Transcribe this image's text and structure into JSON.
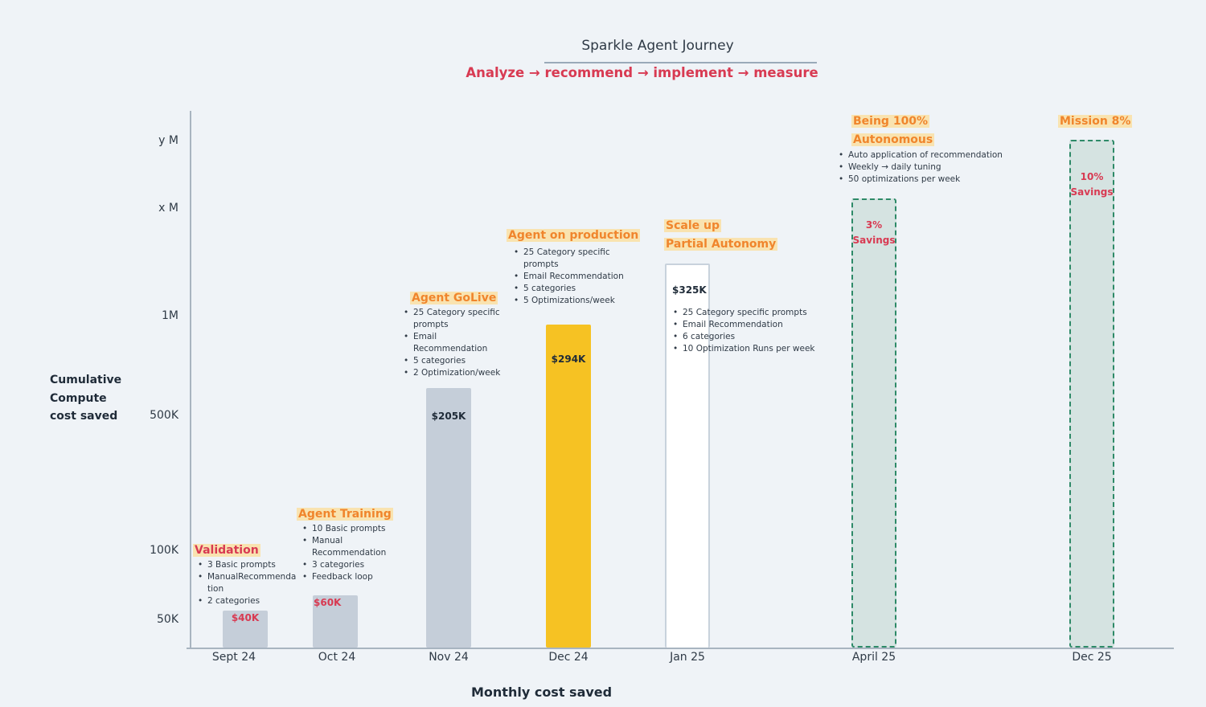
{
  "header": {
    "title": "Sparkle Agent Journey",
    "subtitle": "Analyze → recommend → implement → measure"
  },
  "colors": {
    "completed_bar": "#c5ced9",
    "current_bar": "#f6c223",
    "next_bar": "#ffffff",
    "target_bar_fill": "#d5e3e1",
    "target_bar_border": "#2e8a68",
    "title_orange": "#f0852c",
    "title_red": "#d83a52",
    "highlight": "#f9e3b0"
  },
  "chart_data": {
    "type": "bar",
    "title": "Sparkle Agent Journey",
    "subtitle": "Analyze → recommend → implement → measure",
    "xlabel": "Monthly cost saved",
    "ylabel": "Cumulative Compute cost saved",
    "y_tick_labels": [
      "50K",
      "100K",
      "500K",
      "1M",
      "x M",
      "y M"
    ],
    "grid": false,
    "categories": [
      "Sept 24",
      "Oct 24",
      "Nov 24",
      "Dec 24",
      "Jan 25",
      "April 25",
      "Dec 25"
    ],
    "bars": [
      {
        "category": "Sept 24",
        "value_label": "$40K",
        "value": 40000,
        "style": "completed",
        "phase_title": [
          "Validation"
        ],
        "phase_title_color": "red",
        "bullets": [
          "3 Basic prompts",
          "ManualRecommenda tion",
          "2 categories"
        ]
      },
      {
        "category": "Oct 24",
        "value_label": "$60K",
        "value": 60000,
        "style": "completed",
        "phase_title": [
          "Agent Training"
        ],
        "phase_title_color": "orange",
        "bullets": [
          "10 Basic prompts",
          "Manual Recommendation",
          "3 categories",
          "Feedback loop"
        ]
      },
      {
        "category": "Nov 24",
        "value_label": "$205K",
        "value": 205000,
        "style": "completed",
        "phase_title": [
          "Agent GoLive"
        ],
        "phase_title_color": "orange",
        "bullets": [
          "25 Category specific prompts",
          "Email Recommendation",
          "5 categories",
          "2 Optimization/week"
        ]
      },
      {
        "category": "Dec 24",
        "value_label": "$294K",
        "value": 294000,
        "style": "current",
        "phase_title": [
          "Agent on production"
        ],
        "phase_title_color": "orange",
        "bullets": [
          "25 Category specific prompts",
          "Email Recommendation",
          "5 categories",
          "5 Optimizations/week"
        ]
      },
      {
        "category": "Jan 25",
        "value_label": "$325K",
        "value": 325000,
        "style": "next",
        "phase_title": [
          "Scale up",
          "Partial Autonomy"
        ],
        "phase_title_color": "orange",
        "bullets": [
          "25 Category specific prompts",
          "Email Recommendation",
          "6 categories",
          "10 Optimization Runs per week"
        ]
      },
      {
        "category": "April 25",
        "value_label": "3% Savings",
        "value_label_lines": [
          "3%",
          "Savings"
        ],
        "value": null,
        "style": "target",
        "phase_title": [
          "Being 100%",
          "Autonomous"
        ],
        "phase_title_color": "orange",
        "bullets": [
          "Auto application of recommendation",
          "Weekly → daily tuning",
          "50 optimizations per week"
        ]
      },
      {
        "category": "Dec 25",
        "value_label": "10% Savings",
        "value_label_lines": [
          "10%",
          "Savings"
        ],
        "value": null,
        "style": "target",
        "phase_title": [
          "Mission 8%"
        ],
        "phase_title_color": "orange",
        "bullets": []
      }
    ]
  }
}
